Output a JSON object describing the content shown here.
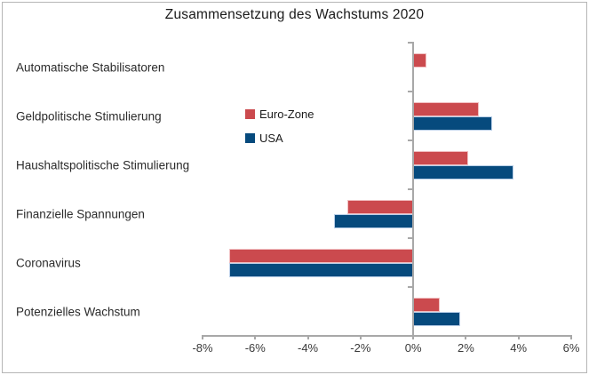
{
  "title": "Zusammensetzung des Wachstums 2020",
  "chart_data": {
    "type": "bar",
    "orientation": "horizontal",
    "title": "Zusammensetzung des Wachstums 2020",
    "categories": [
      "Automatische Stabilisatoren",
      "Geldpolitische Stimulierung",
      "Haushaltspolitische Stimulierung",
      "Finanzielle Spannungen",
      "Coronavirus",
      "Potenzielles Wachstum"
    ],
    "series": [
      {
        "name": "Euro-Zone",
        "color": "#cb4a4e",
        "border_color": "#f1bfc1",
        "values": [
          0.5,
          2.5,
          2.1,
          -2.5,
          -7.0,
          1.0
        ]
      },
      {
        "name": "USA",
        "color": "#064a7d",
        "border_color": "#b9cfe8",
        "values": [
          0.0,
          3.0,
          3.8,
          -3.0,
          -7.0,
          1.8
        ]
      }
    ],
    "xlim": [
      -8,
      6
    ],
    "x_ticks": [
      {
        "value": -8,
        "label": "-8%"
      },
      {
        "value": -6,
        "label": "-6%"
      },
      {
        "value": -4,
        "label": "-4%"
      },
      {
        "value": -2,
        "label": "-2%"
      },
      {
        "value": 0,
        "label": "0%"
      },
      {
        "value": 2,
        "label": "2%"
      },
      {
        "value": 4,
        "label": "4%"
      },
      {
        "value": 6,
        "label": "6%"
      }
    ],
    "grid": false,
    "legend_position": "inside-upper-middle",
    "axis_color": "#a8a8a8",
    "text_color": "#2b2b2b"
  }
}
